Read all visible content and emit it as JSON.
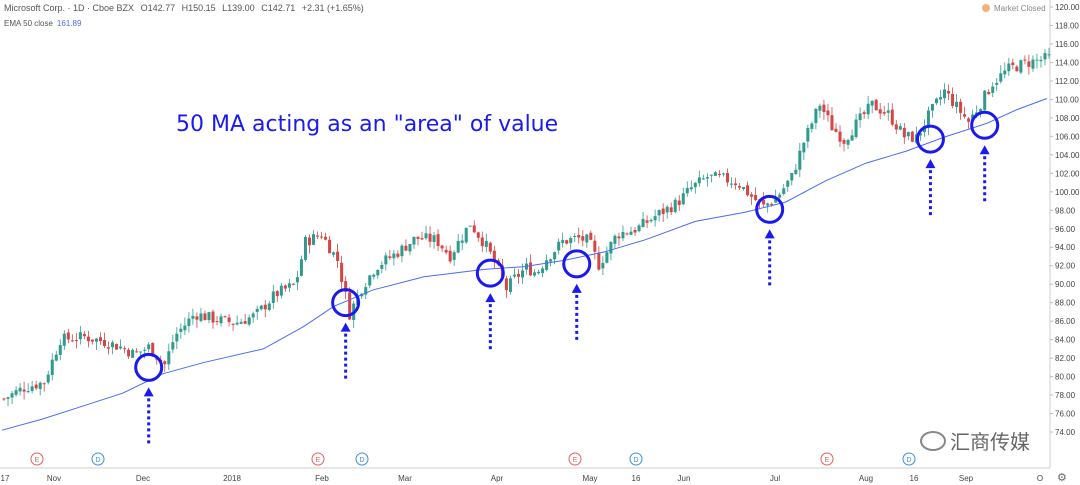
{
  "header": {
    "symbol": "Microsoft Corp. · 1D · Cboe BZX",
    "open": "O142.77",
    "high": "H150.15",
    "low": "L139.00",
    "close": "C142.71",
    "change": "+2.31 (+1.65%)",
    "indicator_label": "EMA 50 close",
    "indicator_value": "161.89",
    "market_status": "Market Closed"
  },
  "annotation": "50 MA acting as an \"area\" of value",
  "watermark": "汇商传媒",
  "colors": {
    "up": "#2e9b8e",
    "down": "#d64545",
    "ema": "#4a6cf7",
    "annotation": "#1a1af0",
    "event_e": "#e06060",
    "event_d": "#3d8fe0"
  },
  "chart_data": {
    "type": "candlestick",
    "title": "",
    "ylim": [
      72,
      120
    ],
    "y_ticks": [
      "74.00",
      "76.00",
      "78.00",
      "80.00",
      "82.00",
      "84.00",
      "86.00",
      "88.00",
      "90.00",
      "92.00",
      "94.00",
      "96.00",
      "98.00",
      "100.00",
      "102.00",
      "104.00",
      "106.00",
      "108.00",
      "110.00",
      "112.00",
      "114.00",
      "116.00",
      "118.00",
      "120.00"
    ],
    "x_ticks": [
      "17",
      "Nov",
      "Dec",
      "2018",
      "Feb",
      "Mar",
      "Apr",
      "May",
      "16",
      "Jun",
      "Jul",
      "Aug",
      "16",
      "Sep",
      "O"
    ],
    "event_markers": [
      "E",
      "D",
      "E",
      "D",
      "E",
      "D",
      "E",
      "D"
    ],
    "close_path": [
      [
        0,
        77.6
      ],
      [
        10,
        78.8
      ],
      [
        20,
        79.4
      ],
      [
        28,
        84.0
      ],
      [
        40,
        84.3
      ],
      [
        50,
        83.8
      ],
      [
        58,
        83.2
      ],
      [
        65,
        82.4
      ],
      [
        72,
        83.2
      ],
      [
        80,
        81.3
      ],
      [
        85,
        84.4
      ],
      [
        95,
        86.8
      ],
      [
        105,
        86.2
      ],
      [
        115,
        85.8
      ],
      [
        125,
        86.6
      ],
      [
        135,
        88.9
      ],
      [
        145,
        90.0
      ],
      [
        150,
        94.6
      ],
      [
        158,
        95.4
      ],
      [
        166,
        92.6
      ],
      [
        172,
        86.8
      ],
      [
        178,
        89.6
      ],
      [
        185,
        91.9
      ],
      [
        195,
        93.3
      ],
      [
        205,
        95.0
      ],
      [
        215,
        94.8
      ],
      [
        222,
        93.1
      ],
      [
        232,
        96.6
      ],
      [
        240,
        94.1
      ],
      [
        245,
        92.0
      ],
      [
        250,
        89.5
      ],
      [
        254,
        90.6
      ],
      [
        260,
        91.8
      ],
      [
        265,
        91.2
      ],
      [
        270,
        92.8
      ],
      [
        278,
        94.6
      ],
      [
        285,
        95.0
      ],
      [
        291,
        94.7
      ],
      [
        296,
        92.1
      ],
      [
        300,
        93.5
      ],
      [
        305,
        95.4
      ],
      [
        315,
        96.0
      ],
      [
        325,
        97.5
      ],
      [
        335,
        98.8
      ],
      [
        342,
        100.4
      ],
      [
        350,
        101.6
      ],
      [
        358,
        101.4
      ],
      [
        365,
        101.0
      ],
      [
        372,
        99.5
      ],
      [
        378,
        98.4
      ],
      [
        385,
        99.5
      ],
      [
        392,
        101.6
      ],
      [
        398,
        105.4
      ],
      [
        406,
        109.5
      ],
      [
        412,
        107.0
      ],
      [
        418,
        105.6
      ],
      [
        425,
        107.6
      ],
      [
        432,
        109.4
      ],
      [
        440,
        108.4
      ],
      [
        448,
        106.0
      ],
      [
        454,
        105.8
      ],
      [
        460,
        108.2
      ],
      [
        468,
        110.9
      ],
      [
        474,
        109.2
      ],
      [
        480,
        107.6
      ],
      [
        485,
        109.2
      ],
      [
        492,
        111.8
      ],
      [
        500,
        113.3
      ],
      [
        508,
        113.9
      ],
      [
        520,
        114.5
      ]
    ],
    "ema_50": [
      [
        0,
        74.2
      ],
      [
        20,
        75.4
      ],
      [
        40,
        76.8
      ],
      [
        60,
        78.2
      ],
      [
        80,
        80.3
      ],
      [
        100,
        81.5
      ],
      [
        130,
        83.0
      ],
      [
        150,
        85.4
      ],
      [
        165,
        87.6
      ],
      [
        185,
        89.4
      ],
      [
        210,
        90.8
      ],
      [
        240,
        91.6
      ],
      [
        260,
        91.9
      ],
      [
        280,
        92.6
      ],
      [
        300,
        93.5
      ],
      [
        320,
        94.8
      ],
      [
        345,
        96.8
      ],
      [
        370,
        97.8
      ],
      [
        390,
        98.9
      ],
      [
        410,
        101.2
      ],
      [
        430,
        103.1
      ],
      [
        450,
        104.4
      ],
      [
        470,
        106.0
      ],
      [
        490,
        107.4
      ],
      [
        505,
        108.9
      ],
      [
        520,
        110.1
      ]
    ],
    "highlight_circles": [
      {
        "x": 73,
        "y": 81.0
      },
      {
        "x": 171,
        "y": 88.0
      },
      {
        "x": 243,
        "y": 91.2
      },
      {
        "x": 286,
        "y": 92.2
      },
      {
        "x": 382,
        "y": 98.1
      },
      {
        "x": 462,
        "y": 105.7
      },
      {
        "x": 489,
        "y": 107.2
      }
    ]
  }
}
